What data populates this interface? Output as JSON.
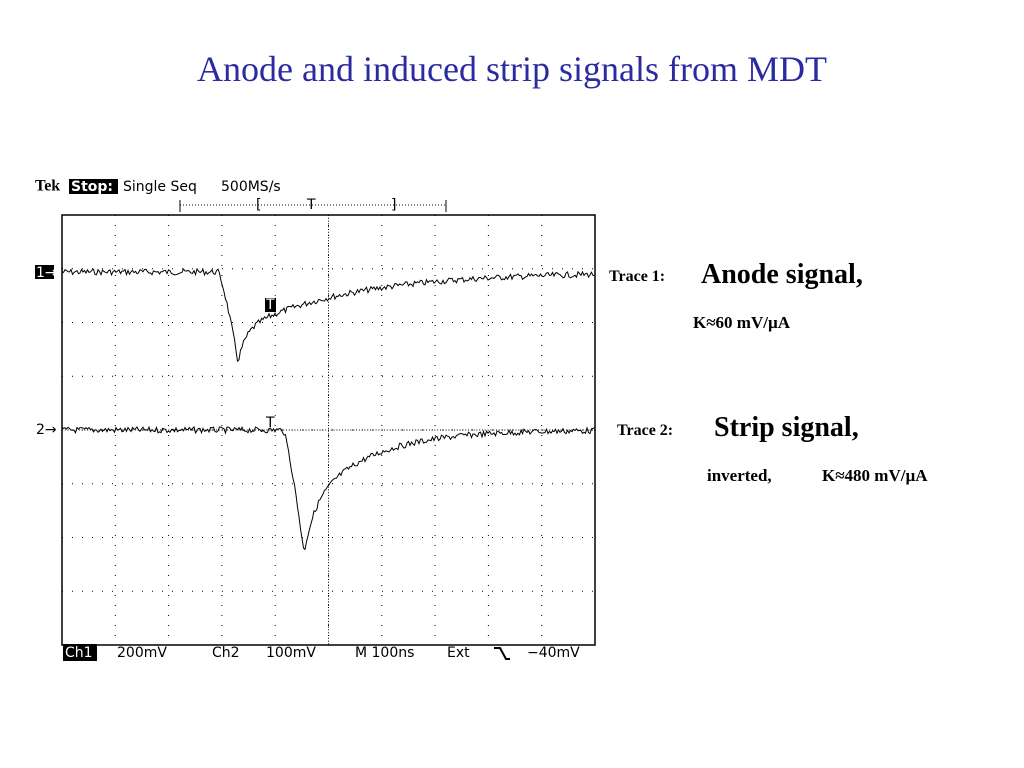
{
  "header": {
    "title": "Anode and induced strip signals from MDT"
  },
  "scope": {
    "top": {
      "brand": "Tek",
      "state": "Stop:",
      "mode": "Single Seq",
      "rate": "500MS/s",
      "bracket_left": "[",
      "trigger_pos": "T",
      "bracket_right": "]"
    },
    "markers": {
      "ch1": "1→",
      "ch2": "2→",
      "trigger1": "T",
      "trigger2": "T"
    },
    "bottom": {
      "ch1": "Ch1",
      "ch1_scale": "200mV",
      "ch2": "Ch2",
      "ch2_scale": "100mV",
      "time": "M 100ns",
      "source": "Ext",
      "level": "−40mV"
    }
  },
  "annotations": {
    "trace1": {
      "label": "Trace 1:",
      "title": "Anode signal,",
      "gain": "K≈60 mV/µA"
    },
    "trace2": {
      "label": "Trace 2:",
      "title": "Strip signal,",
      "note": "inverted,",
      "gain": "K≈480 mV/µA"
    }
  }
}
